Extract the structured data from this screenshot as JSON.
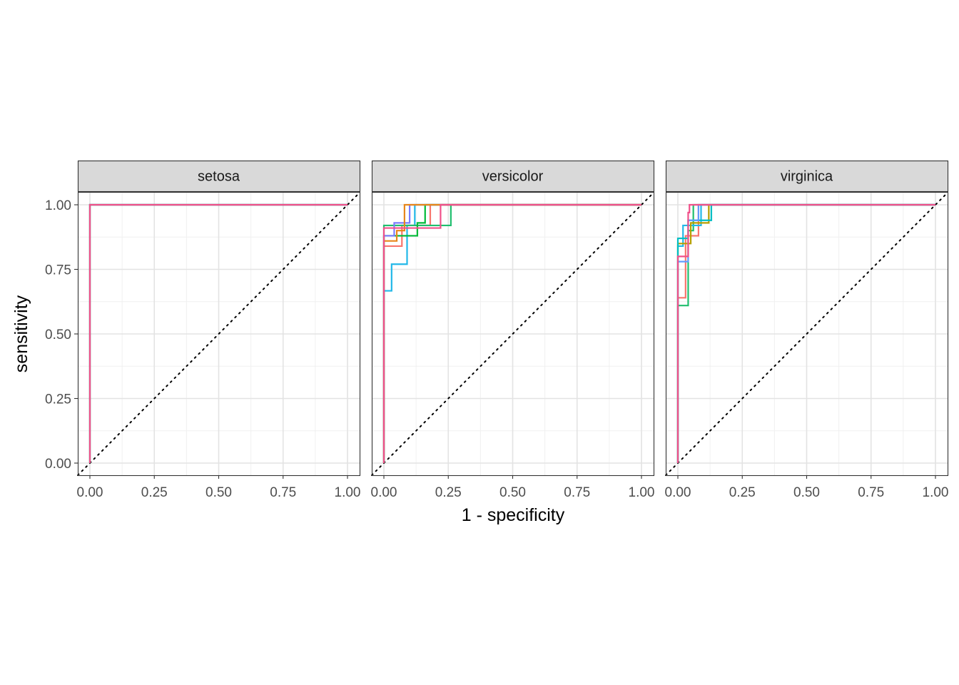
{
  "chart_data": {
    "type": "line",
    "subtype": "roc-curve-facets",
    "xlabel": "1 - specificity",
    "ylabel": "sensitivity",
    "xlim": [
      0,
      1
    ],
    "ylim": [
      0,
      1
    ],
    "x_ticks": [
      "0.00",
      "0.25",
      "0.50",
      "0.75",
      "1.00"
    ],
    "y_ticks": [
      "0.00",
      "0.25",
      "0.50",
      "0.75",
      "1.00"
    ],
    "grid": true,
    "reference_line": "diagonal dotted y = x",
    "series_colors": [
      "#F8766D",
      "#B79F00",
      "#00BA38",
      "#00BFC4",
      "#619CFF",
      "#F564E3"
    ],
    "facets": [
      {
        "label": "setosa",
        "series": [
          {
            "color": "#F8766D",
            "points": [
              [
                0,
                0
              ],
              [
                0,
                1
              ],
              [
                1,
                1
              ]
            ]
          },
          {
            "color": "#00BA38",
            "points": [
              [
                0,
                0
              ],
              [
                0,
                1
              ],
              [
                1,
                1
              ]
            ]
          },
          {
            "color": "#00A9FF",
            "points": [
              [
                0,
                0
              ],
              [
                0,
                1
              ],
              [
                1,
                1
              ]
            ]
          },
          {
            "color": "#F0508A",
            "points": [
              [
                0,
                0
              ],
              [
                0,
                1
              ],
              [
                1,
                1
              ]
            ]
          }
        ]
      },
      {
        "label": "versicolor",
        "series": [
          {
            "color": "#22B8E8",
            "points": [
              [
                0,
                0
              ],
              [
                0,
                0.667
              ],
              [
                0.03,
                0.667
              ],
              [
                0.03,
                0.77
              ],
              [
                0.09,
                0.77
              ],
              [
                0.09,
                0.92
              ],
              [
                0.12,
                0.92
              ],
              [
                0.12,
                1
              ],
              [
                1,
                1
              ]
            ]
          },
          {
            "color": "#F8766D",
            "points": [
              [
                0,
                0
              ],
              [
                0,
                0.84
              ],
              [
                0.07,
                0.84
              ],
              [
                0.07,
                0.92
              ],
              [
                0.18,
                0.92
              ],
              [
                0.18,
                1
              ],
              [
                1,
                1
              ]
            ]
          },
          {
            "color": "#20BE6E",
            "points": [
              [
                0,
                0
              ],
              [
                0,
                0.92
              ],
              [
                0.26,
                0.92
              ],
              [
                0.26,
                1
              ],
              [
                1,
                1
              ]
            ]
          },
          {
            "color": "#00BA38",
            "points": [
              [
                0,
                0
              ],
              [
                0,
                0.88
              ],
              [
                0.13,
                0.88
              ],
              [
                0.13,
                0.93
              ],
              [
                0.16,
                0.93
              ],
              [
                0.16,
                1
              ],
              [
                1,
                1
              ]
            ]
          },
          {
            "color": "#7A7CFF",
            "points": [
              [
                0,
                0
              ],
              [
                0,
                0.88
              ],
              [
                0.04,
                0.88
              ],
              [
                0.04,
                0.93
              ],
              [
                0.1,
                0.93
              ],
              [
                0.1,
                1
              ],
              [
                1,
                1
              ]
            ]
          },
          {
            "color": "#E7861B",
            "points": [
              [
                0,
                0
              ],
              [
                0,
                0.86
              ],
              [
                0.05,
                0.86
              ],
              [
                0.05,
                0.9
              ],
              [
                0.08,
                0.9
              ],
              [
                0.08,
                1
              ],
              [
                1,
                1
              ]
            ]
          },
          {
            "color": "#F0508A",
            "points": [
              [
                0,
                0
              ],
              [
                0,
                0.91
              ],
              [
                0.22,
                0.91
              ],
              [
                0.22,
                1
              ],
              [
                1,
                1
              ]
            ]
          }
        ]
      },
      {
        "label": "virginica",
        "series": [
          {
            "color": "#20BE6E",
            "points": [
              [
                0,
                0
              ],
              [
                0,
                0.61
              ],
              [
                0.04,
                0.61
              ],
              [
                0.04,
                0.9
              ],
              [
                0.06,
                0.9
              ],
              [
                0.06,
                1
              ],
              [
                1,
                1
              ]
            ]
          },
          {
            "color": "#F8766D",
            "points": [
              [
                0,
                0
              ],
              [
                0,
                0.64
              ],
              [
                0.03,
                0.64
              ],
              [
                0.03,
                0.88
              ],
              [
                0.08,
                0.88
              ],
              [
                0.08,
                1
              ],
              [
                1,
                1
              ]
            ]
          },
          {
            "color": "#22B8E8",
            "points": [
              [
                0,
                0
              ],
              [
                0,
                0.84
              ],
              [
                0.02,
                0.84
              ],
              [
                0.02,
                0.92
              ],
              [
                0.09,
                0.92
              ],
              [
                0.09,
                1
              ],
              [
                1,
                1
              ]
            ]
          },
          {
            "color": "#B79F00",
            "points": [
              [
                0,
                0
              ],
              [
                0,
                0.85
              ],
              [
                0.05,
                0.85
              ],
              [
                0.05,
                0.93
              ],
              [
                0.12,
                0.93
              ],
              [
                0.12,
                1
              ],
              [
                1,
                1
              ]
            ]
          },
          {
            "color": "#00BFC4",
            "points": [
              [
                0,
                0
              ],
              [
                0,
                0.87
              ],
              [
                0.04,
                0.87
              ],
              [
                0.04,
                0.94
              ],
              [
                0.13,
                0.94
              ],
              [
                0.13,
                1
              ],
              [
                1,
                1
              ]
            ]
          },
          {
            "color": "#619CFF",
            "points": [
              [
                0,
                0
              ],
              [
                0,
                0.78
              ],
              [
                0.04,
                0.78
              ],
              [
                0.04,
                0.94
              ],
              [
                0.08,
                0.94
              ],
              [
                0.08,
                1
              ],
              [
                1,
                1
              ]
            ]
          },
          {
            "color": "#F0508A",
            "points": [
              [
                0,
                0
              ],
              [
                0,
                0.8
              ],
              [
                0.04,
                0.8
              ],
              [
                0.04,
                0.97
              ],
              [
                0.045,
                0.97
              ],
              [
                0.045,
                1
              ],
              [
                1,
                1
              ]
            ]
          }
        ]
      }
    ]
  }
}
